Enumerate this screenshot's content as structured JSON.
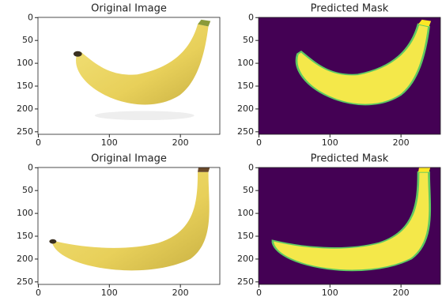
{
  "chart_data": [
    {
      "type": "image",
      "title": "Original Image",
      "xlim": [
        -0.5,
        255.5
      ],
      "ylim": [
        255.5,
        -0.5
      ],
      "xticks": [
        0,
        100,
        200
      ],
      "yticks": [
        0,
        50,
        100,
        150,
        200,
        250
      ]
    },
    {
      "type": "image",
      "title": "Predicted Mask",
      "xlim": [
        -0.5,
        255.5
      ],
      "ylim": [
        255.5,
        -0.5
      ],
      "xticks": [
        0,
        100,
        200
      ],
      "yticks": [
        0,
        50,
        100,
        150,
        200,
        250
      ]
    },
    {
      "type": "image",
      "title": "Original Image",
      "xlim": [
        -0.5,
        255.5
      ],
      "ylim": [
        255.5,
        -0.5
      ],
      "xticks": [
        0,
        100,
        200
      ],
      "yticks": [
        0,
        50,
        100,
        150,
        200,
        250
      ]
    },
    {
      "type": "image",
      "title": "Predicted Mask",
      "xlim": [
        -0.5,
        255.5
      ],
      "ylim": [
        255.5,
        -0.5
      ],
      "xticks": [
        0,
        100,
        200
      ],
      "yticks": [
        0,
        50,
        100,
        150,
        200,
        250
      ]
    }
  ]
}
